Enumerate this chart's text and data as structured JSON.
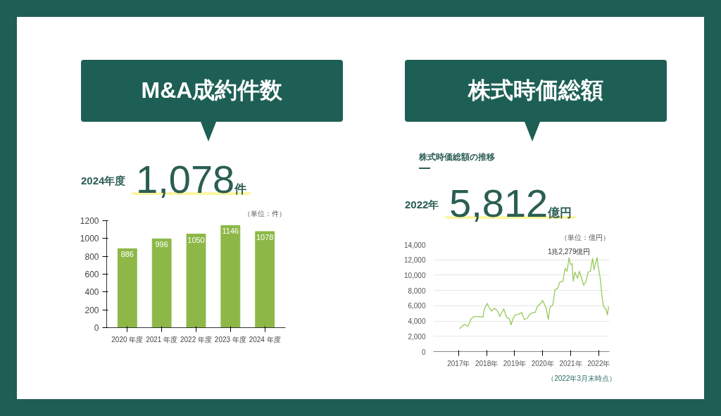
{
  "chart_data": [
    {
      "type": "bar",
      "title": "M&A成約件数",
      "annotations": [
        "2024年度",
        "1,078",
        "件",
        "（単位：件）"
      ],
      "categories": [
        "2020 年度",
        "2021 年度",
        "2022 年度",
        "2023 年度",
        "2024 年度"
      ],
      "values": [
        886,
        996,
        1050,
        1146,
        1078
      ],
      "color": "#8db848",
      "data_labels": true,
      "grid": false,
      "ylim": [
        0,
        1200
      ],
      "yticks": [
        0,
        200,
        400,
        600,
        800,
        1000,
        1200
      ]
    },
    {
      "type": "line",
      "title": "株式時価総額",
      "subtitle": "株式時価総額の推移",
      "annotations": [
        "2022年",
        "5,812",
        "億円",
        "（単位：億円）",
        {
          "text": "1兆2,279億円",
          "x": 2020.94,
          "y": 12279
        },
        "（2022年3月末時点）"
      ],
      "x": [
        2017.03,
        2017.21,
        2017.33,
        2017.45,
        2017.57,
        2017.72,
        2017.87,
        2017.92,
        2018.02,
        2018.08,
        2018.18,
        2018.28,
        2018.39,
        2018.47,
        2018.61,
        2018.71,
        2018.81,
        2018.87,
        2018.94,
        2019.02,
        2019.14,
        2019.26,
        2019.34,
        2019.46,
        2019.54,
        2019.65,
        2019.73,
        2019.81,
        2019.93,
        2019.99,
        2020.05,
        2020.13,
        2020.2,
        2020.26,
        2020.36,
        2020.44,
        2020.54,
        2020.61,
        2020.72,
        2020.8,
        2020.87,
        2020.94,
        2020.99,
        2021.05,
        2021.09,
        2021.15,
        2021.24,
        2021.31,
        2021.39,
        2021.46,
        2021.54,
        2021.62,
        2021.7,
        2021.78,
        2021.83,
        2021.94,
        2021.98,
        2022.06,
        2022.12,
        2022.17,
        2022.25,
        2022.31,
        2022.35
      ],
      "series": [
        {
          "color": "#97c95a",
          "values": [
            3000,
            3600,
            3300,
            4300,
            4600,
            4600,
            4500,
            5600,
            6300,
            5800,
            5300,
            5700,
            5300,
            4600,
            5600,
            4500,
            4300,
            3500,
            4300,
            4800,
            4900,
            5100,
            4200,
            4400,
            4900,
            5100,
            5100,
            5900,
            6300,
            6700,
            6300,
            5600,
            4200,
            5800,
            6100,
            8100,
            8300,
            9100,
            9200,
            10900,
            10500,
            12279,
            11400,
            11500,
            9200,
            10400,
            9600,
            10500,
            9600,
            8700,
            9100,
            10400,
            10500,
            12200,
            10700,
            12300,
            11200,
            9400,
            7100,
            5900,
            5600,
            4800,
            5900
          ]
        }
      ],
      "grid": "y",
      "xlim": [
        2016.1,
        2022.38
      ],
      "xticks": [
        {
          "value": 2017,
          "label": "2017年"
        },
        {
          "value": 2018,
          "label": "2018年"
        },
        {
          "value": 2019,
          "label": "2019年"
        },
        {
          "value": 2020,
          "label": "2020年"
        },
        {
          "value": 2021,
          "label": "2021年"
        },
        {
          "value": 2022,
          "label": "2022年"
        }
      ],
      "ylim": [
        0,
        14000
      ],
      "yticks": [
        0,
        {
          "value": 2000,
          "label": "2,000"
        },
        {
          "value": 4000,
          "label": "4,000"
        },
        {
          "value": 6000,
          "label": "6,000"
        },
        {
          "value": 8000,
          "label": "8,000"
        },
        {
          "value": 10000,
          "label": "10,000"
        },
        {
          "value": 12000,
          "label": "12,000"
        },
        {
          "value": 14000,
          "label": "14,000"
        }
      ]
    }
  ]
}
